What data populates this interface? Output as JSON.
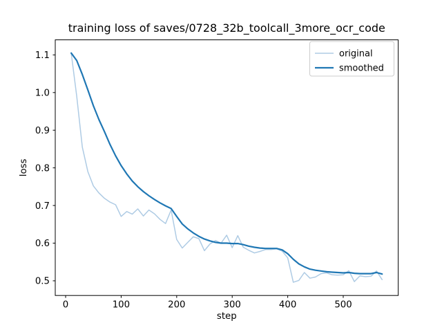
{
  "chart_data": {
    "type": "line",
    "title": "training loss of saves/0728_32b_toolcall_3more_ocr_code",
    "xlabel": "step",
    "ylabel": "loss",
    "xlim": [
      -18.7,
      599
    ],
    "ylim": [
      0.461,
      1.14
    ],
    "xticks": [
      0,
      100,
      200,
      300,
      400,
      500
    ],
    "yticks": [
      0.5,
      0.6,
      0.7,
      0.8,
      0.9,
      1.0,
      1.1
    ],
    "grid": false,
    "legend": {
      "position": "upper right",
      "entries": [
        "original",
        "smoothed"
      ]
    },
    "x": [
      10,
      20,
      30,
      40,
      50,
      60,
      70,
      80,
      90,
      100,
      110,
      120,
      130,
      140,
      150,
      160,
      170,
      180,
      190,
      200,
      210,
      220,
      230,
      240,
      250,
      260,
      270,
      280,
      290,
      300,
      310,
      320,
      330,
      340,
      350,
      360,
      370,
      380,
      390,
      400,
      410,
      420,
      430,
      440,
      450,
      460,
      470,
      480,
      490,
      500,
      510,
      520,
      530,
      540,
      550,
      560,
      570
    ],
    "series": [
      {
        "name": "original",
        "color": "#aecbe4",
        "linewidth": 1.5,
        "values": [
          1.105,
          0.99,
          0.855,
          0.79,
          0.752,
          0.733,
          0.719,
          0.709,
          0.702,
          0.671,
          0.684,
          0.677,
          0.691,
          0.672,
          0.688,
          0.678,
          0.663,
          0.652,
          0.688,
          0.61,
          0.587,
          0.602,
          0.617,
          0.612,
          0.58,
          0.598,
          0.607,
          0.6,
          0.621,
          0.588,
          0.62,
          0.589,
          0.581,
          0.574,
          0.578,
          0.583,
          0.583,
          0.585,
          0.579,
          0.561,
          0.496,
          0.501,
          0.522,
          0.507,
          0.51,
          0.519,
          0.521,
          0.516,
          0.515,
          0.516,
          0.527,
          0.498,
          0.513,
          0.511,
          0.512,
          0.526,
          0.503
        ]
      },
      {
        "name": "smoothed",
        "color": "#1f77b4",
        "linewidth": 2.2,
        "values": [
          1.105,
          1.085,
          1.048,
          1.007,
          0.965,
          0.928,
          0.896,
          0.862,
          0.832,
          0.806,
          0.784,
          0.765,
          0.75,
          0.737,
          0.726,
          0.716,
          0.707,
          0.699,
          0.692,
          0.671,
          0.651,
          0.638,
          0.627,
          0.618,
          0.611,
          0.606,
          0.602,
          0.6,
          0.6,
          0.599,
          0.599,
          0.596,
          0.592,
          0.589,
          0.587,
          0.586,
          0.586,
          0.586,
          0.582,
          0.572,
          0.557,
          0.545,
          0.537,
          0.531,
          0.528,
          0.526,
          0.524,
          0.523,
          0.522,
          0.521,
          0.522,
          0.52,
          0.519,
          0.519,
          0.519,
          0.522,
          0.518
        ]
      }
    ]
  }
}
